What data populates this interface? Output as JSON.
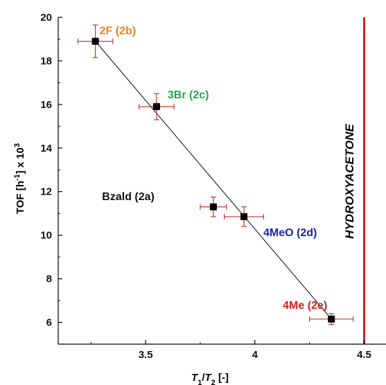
{
  "chart_data": {
    "type": "scatter",
    "xlabel": {
      "base1": "T",
      "sub1": "1",
      "slash": "/",
      "base2": "T",
      "sub2": "2",
      "unit": " [-]"
    },
    "ylabel": {
      "prefix": "TOF [h",
      "sup1": "-1",
      "middle": "] x 10",
      "sup2": "3"
    },
    "xlim": [
      3.1,
      4.6
    ],
    "ylim": [
      5,
      20
    ],
    "x_ticks": [
      "3.5",
      "4",
      "4.5"
    ],
    "y_ticks": [
      "6",
      "8",
      "10",
      "12",
      "14",
      "16",
      "18",
      "20"
    ],
    "points": [
      {
        "label": "2F (2b)",
        "x": 3.27,
        "y": 18.9,
        "xerr": 0.08,
        "yerr": 0.75,
        "label_color": "#f07f1b"
      },
      {
        "label": "3Br (2c)",
        "x": 3.55,
        "y": 15.9,
        "xerr": 0.08,
        "yerr": 0.6,
        "label_color": "#1fa84f"
      },
      {
        "label": "Bzald (2a)",
        "x": 3.81,
        "y": 11.3,
        "xerr": 0.06,
        "yerr": 0.45,
        "label_color": "#111111"
      },
      {
        "label": "4MeO (2d)",
        "x": 3.95,
        "y": 10.85,
        "xerr": 0.09,
        "yerr": 0.45,
        "label_color": "#1f1fb3"
      },
      {
        "label": "4Me (2e)",
        "x": 4.35,
        "y": 6.15,
        "xerr": 0.1,
        "yerr": 0.25,
        "label_color": "#e11b1b"
      }
    ],
    "fit_line": {
      "x": [
        3.27,
        4.35
      ],
      "y": [
        18.9,
        6.15
      ]
    },
    "vertical_line": {
      "x": 4.5,
      "label": "HYDROXYACETONE",
      "color": "#d81e1e"
    },
    "errorbar_color": "#c0392b",
    "marker_color": "#000000"
  }
}
